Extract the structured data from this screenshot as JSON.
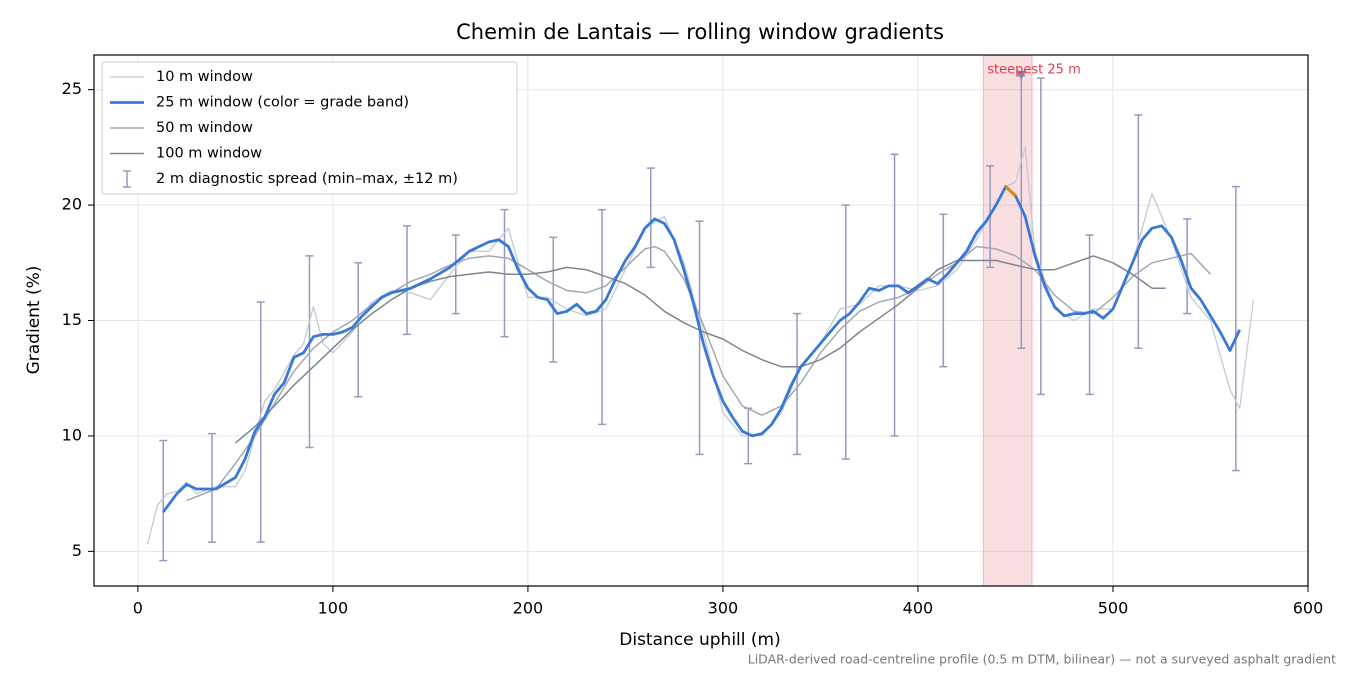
{
  "chart_data": {
    "type": "line",
    "title": "Chemin de Lantais — rolling window gradients",
    "xlabel": "Distance uphill (m)",
    "ylabel": "Gradient (%)",
    "note": "LiDAR-derived road-centreline profile (0.5 m DTM, bilinear) — not a surveyed asphalt gradient",
    "xlim": [
      -22.5,
      600
    ],
    "ylim": [
      3.5,
      26.5
    ],
    "xticks": [
      0,
      100,
      200,
      300,
      400,
      500,
      600
    ],
    "yticks": [
      5,
      10,
      15,
      20,
      25
    ],
    "grid": true,
    "legend": "upper left",
    "series": [
      {
        "name": "10 m window",
        "color": "#c3cad5",
        "width": 1.3,
        "x": [
          5,
          10,
          15,
          20,
          25,
          30,
          40,
          50,
          55,
          60,
          65,
          70,
          80,
          85,
          90,
          95,
          100,
          110,
          120,
          130,
          140,
          150,
          160,
          170,
          180,
          190,
          200,
          210,
          220,
          230,
          240,
          250,
          260,
          270,
          280,
          290,
          300,
          310,
          320,
          330,
          340,
          350,
          360,
          370,
          380,
          390,
          400,
          410,
          420,
          430,
          440,
          445,
          450,
          455,
          460,
          470,
          480,
          490,
          500,
          510,
          520,
          530,
          540,
          550,
          555,
          560,
          565,
          572
        ],
        "values": [
          5.3,
          7.0,
          7.5,
          7.6,
          8.0,
          7.5,
          7.8,
          7.8,
          8.5,
          10.0,
          11.5,
          12.0,
          13.5,
          14.0,
          15.6,
          14.0,
          13.6,
          14.5,
          15.8,
          16.3,
          16.2,
          15.9,
          17.0,
          18.0,
          18.0,
          19.0,
          16.0,
          16.0,
          15.5,
          15.2,
          15.5,
          17.2,
          19.0,
          19.5,
          17.5,
          14.5,
          11.0,
          10.0,
          10.0,
          11.0,
          13.0,
          14.0,
          15.5,
          15.7,
          16.5,
          16.5,
          16.3,
          16.5,
          17.2,
          18.5,
          20.0,
          20.8,
          21.0,
          22.5,
          18.0,
          15.5,
          15.0,
          15.5,
          15.5,
          17.5,
          20.5,
          18.5,
          16.0,
          15.0,
          13.5,
          12.0,
          11.2,
          15.9
        ]
      },
      {
        "name": "25 m window (color = grade band)",
        "color": "#3a78d6",
        "width": 2.8,
        "highlight_range": [
          441,
          452
        ],
        "highlight_color": "#e08a10",
        "x": [
          13,
          20,
          25,
          30,
          40,
          50,
          55,
          60,
          65,
          70,
          75,
          80,
          85,
          90,
          95,
          100,
          105,
          110,
          115,
          120,
          125,
          130,
          140,
          150,
          160,
          170,
          180,
          185,
          190,
          195,
          200,
          205,
          210,
          215,
          220,
          225,
          230,
          235,
          240,
          245,
          250,
          255,
          260,
          265,
          270,
          275,
          280,
          285,
          290,
          295,
          300,
          305,
          310,
          315,
          320,
          325,
          330,
          335,
          340,
          345,
          350,
          355,
          360,
          365,
          370,
          375,
          380,
          385,
          390,
          395,
          400,
          405,
          410,
          415,
          420,
          425,
          430,
          435,
          440,
          445,
          450,
          455,
          460,
          465,
          470,
          475,
          480,
          485,
          490,
          495,
          500,
          505,
          510,
          515,
          520,
          525,
          530,
          535,
          540,
          545,
          550,
          555,
          560,
          565
        ],
        "values": [
          6.7,
          7.5,
          7.9,
          7.7,
          7.7,
          8.2,
          9.0,
          10.2,
          10.8,
          11.8,
          12.3,
          13.4,
          13.6,
          14.3,
          14.4,
          14.4,
          14.5,
          14.7,
          15.2,
          15.6,
          16.0,
          16.2,
          16.4,
          16.8,
          17.3,
          18.0,
          18.4,
          18.5,
          18.2,
          17.2,
          16.4,
          16.0,
          15.9,
          15.3,
          15.4,
          15.7,
          15.3,
          15.4,
          15.9,
          16.8,
          17.6,
          18.2,
          19.0,
          19.4,
          19.2,
          18.5,
          17.2,
          15.7,
          14.0,
          12.6,
          11.5,
          10.8,
          10.2,
          10.0,
          10.1,
          10.5,
          11.2,
          12.2,
          13.0,
          13.5,
          14.0,
          14.5,
          15.0,
          15.3,
          15.8,
          16.4,
          16.3,
          16.5,
          16.5,
          16.2,
          16.5,
          16.8,
          16.6,
          17.0,
          17.5,
          18.0,
          18.8,
          19.3,
          20.0,
          20.8,
          20.4,
          19.5,
          17.8,
          16.5,
          15.6,
          15.2,
          15.3,
          15.3,
          15.4,
          15.1,
          15.5,
          16.5,
          17.5,
          18.5,
          19.0,
          19.1,
          18.6,
          17.6,
          16.4,
          15.9,
          15.2,
          14.5,
          13.7,
          14.6
        ]
      },
      {
        "name": "50 m window",
        "color": "#a0a8b4",
        "width": 1.5,
        "x": [
          25,
          40,
          50,
          60,
          70,
          80,
          90,
          100,
          110,
          120,
          130,
          140,
          150,
          160,
          170,
          180,
          190,
          200,
          210,
          220,
          230,
          240,
          250,
          260,
          265,
          270,
          280,
          290,
          300,
          310,
          320,
          330,
          340,
          350,
          360,
          370,
          380,
          390,
          400,
          410,
          420,
          430,
          440,
          450,
          460,
          470,
          480,
          490,
          500,
          510,
          520,
          530,
          540,
          550
        ],
        "values": [
          7.2,
          7.7,
          8.8,
          10.0,
          11.4,
          12.8,
          13.8,
          14.5,
          15.0,
          15.7,
          16.2,
          16.7,
          17.0,
          17.4,
          17.7,
          17.8,
          17.7,
          17.2,
          16.7,
          16.3,
          16.2,
          16.5,
          17.3,
          18.1,
          18.2,
          18.0,
          16.8,
          14.8,
          12.6,
          11.3,
          10.9,
          11.3,
          12.3,
          13.6,
          14.6,
          15.4,
          15.8,
          16.0,
          16.4,
          17.0,
          17.5,
          18.2,
          18.1,
          17.8,
          17.2,
          16.1,
          15.4,
          15.3,
          16.0,
          16.9,
          17.5,
          17.7,
          17.9,
          17.0
        ]
      },
      {
        "name": "100 m window",
        "color": "#7c8593",
        "width": 1.5,
        "x": [
          50,
          60,
          70,
          80,
          90,
          100,
          110,
          120,
          130,
          140,
          150,
          160,
          170,
          180,
          190,
          200,
          210,
          220,
          230,
          240,
          250,
          260,
          270,
          280,
          290,
          300,
          310,
          320,
          330,
          340,
          350,
          360,
          370,
          380,
          390,
          400,
          410,
          420,
          430,
          440,
          450,
          460,
          470,
          480,
          490,
          500,
          510,
          520,
          527
        ],
        "values": [
          9.7,
          10.4,
          11.3,
          12.2,
          13.0,
          13.8,
          14.6,
          15.3,
          15.9,
          16.4,
          16.7,
          16.9,
          17.0,
          17.1,
          17.0,
          17.0,
          17.1,
          17.3,
          17.2,
          16.9,
          16.6,
          16.1,
          15.4,
          14.9,
          14.5,
          14.2,
          13.7,
          13.3,
          13.0,
          13.0,
          13.3,
          13.8,
          14.5,
          15.1,
          15.7,
          16.4,
          17.2,
          17.6,
          17.6,
          17.6,
          17.4,
          17.2,
          17.2,
          17.5,
          17.8,
          17.5,
          17.0,
          16.4,
          16.4
        ]
      }
    ],
    "error_bars": {
      "name": "2 m diagnostic spread (min–max, ±12 m)",
      "color": "#9a98bd",
      "x": [
        13,
        38,
        63,
        88,
        113,
        138,
        163,
        188,
        213,
        238,
        263,
        288,
        313,
        338,
        363,
        388,
        413,
        437,
        453,
        463,
        488,
        513,
        538,
        563
      ],
      "low": [
        4.6,
        5.4,
        5.4,
        9.5,
        11.7,
        14.4,
        15.3,
        14.3,
        13.2,
        10.5,
        17.3,
        9.2,
        8.8,
        9.2,
        9.0,
        10.0,
        13.0,
        17.3,
        13.8,
        11.8,
        11.8,
        13.8,
        15.3,
        8.5
      ],
      "high": [
        9.8,
        10.1,
        15.8,
        17.8,
        17.5,
        19.1,
        18.7,
        19.8,
        18.6,
        19.8,
        21.6,
        19.3,
        11.2,
        15.3,
        20.0,
        22.2,
        19.6,
        21.7,
        25.6,
        25.5,
        18.7,
        23.9,
        19.4,
        20.8
      ]
    },
    "highlight": {
      "label": "steepest 25 m",
      "range": [
        433.5,
        458.5
      ],
      "color": "#d9404f",
      "marker_x": 453,
      "marker_y": 25.6
    }
  }
}
